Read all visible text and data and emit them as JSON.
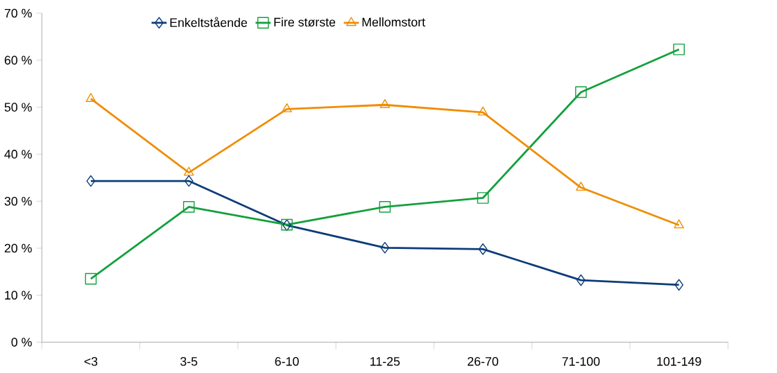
{
  "chart_data": {
    "type": "line",
    "categories": [
      "<3",
      "3-5",
      "6-10",
      "11-25",
      "26-70",
      "71-100",
      "101-149"
    ],
    "series": [
      {
        "name": "Enkeltstående",
        "color": "#0b3c78",
        "marker": "diamond",
        "values": [
          34.3,
          34.3,
          24.9,
          20.1,
          19.8,
          13.2,
          12.2
        ]
      },
      {
        "name": "Fire største",
        "color": "#12a03c",
        "marker": "square",
        "values": [
          13.5,
          28.8,
          25.0,
          28.8,
          30.7,
          53.2,
          62.3
        ]
      },
      {
        "name": "Mellomstort",
        "color": "#f08c00",
        "marker": "triangle",
        "values": [
          51.8,
          36.1,
          49.6,
          50.5,
          48.9,
          32.9,
          24.9
        ]
      }
    ],
    "ylim": [
      0,
      70
    ],
    "yticks": [
      {
        "value": 0,
        "label": "0 %"
      },
      {
        "value": 10,
        "label": "10 %"
      },
      {
        "value": 20,
        "label": "20 %"
      },
      {
        "value": 30,
        "label": "30 %"
      },
      {
        "value": 40,
        "label": "40 %"
      },
      {
        "value": 50,
        "label": "50 %"
      },
      {
        "value": 60,
        "label": "60 %"
      },
      {
        "value": 70,
        "label": "70 %"
      }
    ],
    "grid": false,
    "legend": "top",
    "line_style": "solid"
  }
}
